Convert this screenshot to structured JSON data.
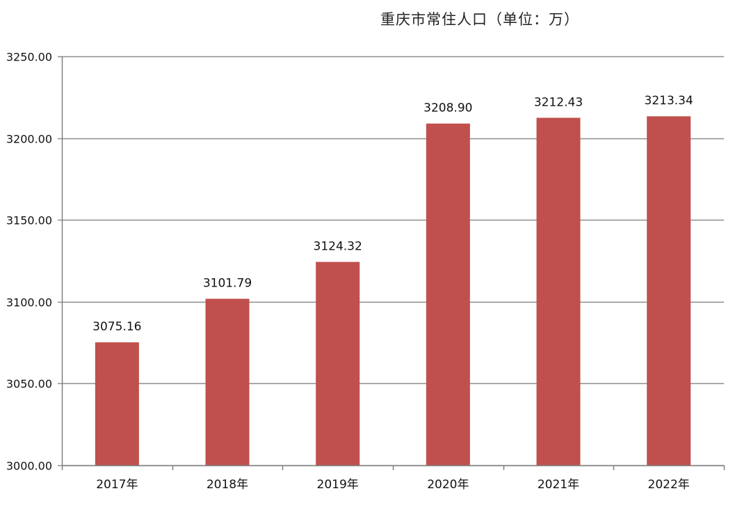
{
  "chart_data": {
    "type": "bar",
    "title": "重庆市常住人口（单位：万）",
    "categories": [
      "2017年",
      "2018年",
      "2019年",
      "2020年",
      "2021年",
      "2022年"
    ],
    "values": [
      3075.16,
      3101.79,
      3124.32,
      3208.9,
      3212.43,
      3213.34
    ],
    "value_labels": [
      "3075.16",
      "3101.79",
      "3124.32",
      "3208.90",
      "3212.43",
      "3213.34"
    ],
    "y_ticks": [
      "3000.00",
      "3050.00",
      "3100.00",
      "3150.00",
      "3200.00",
      "3250.00"
    ],
    "ylim": [
      3000,
      3250
    ],
    "xlabel": "",
    "ylabel": "",
    "grid": true,
    "legend": "none",
    "colors": {
      "bar": "#c0504d",
      "grid": "#8c8c8c",
      "axis": "#7f7f7f"
    }
  }
}
